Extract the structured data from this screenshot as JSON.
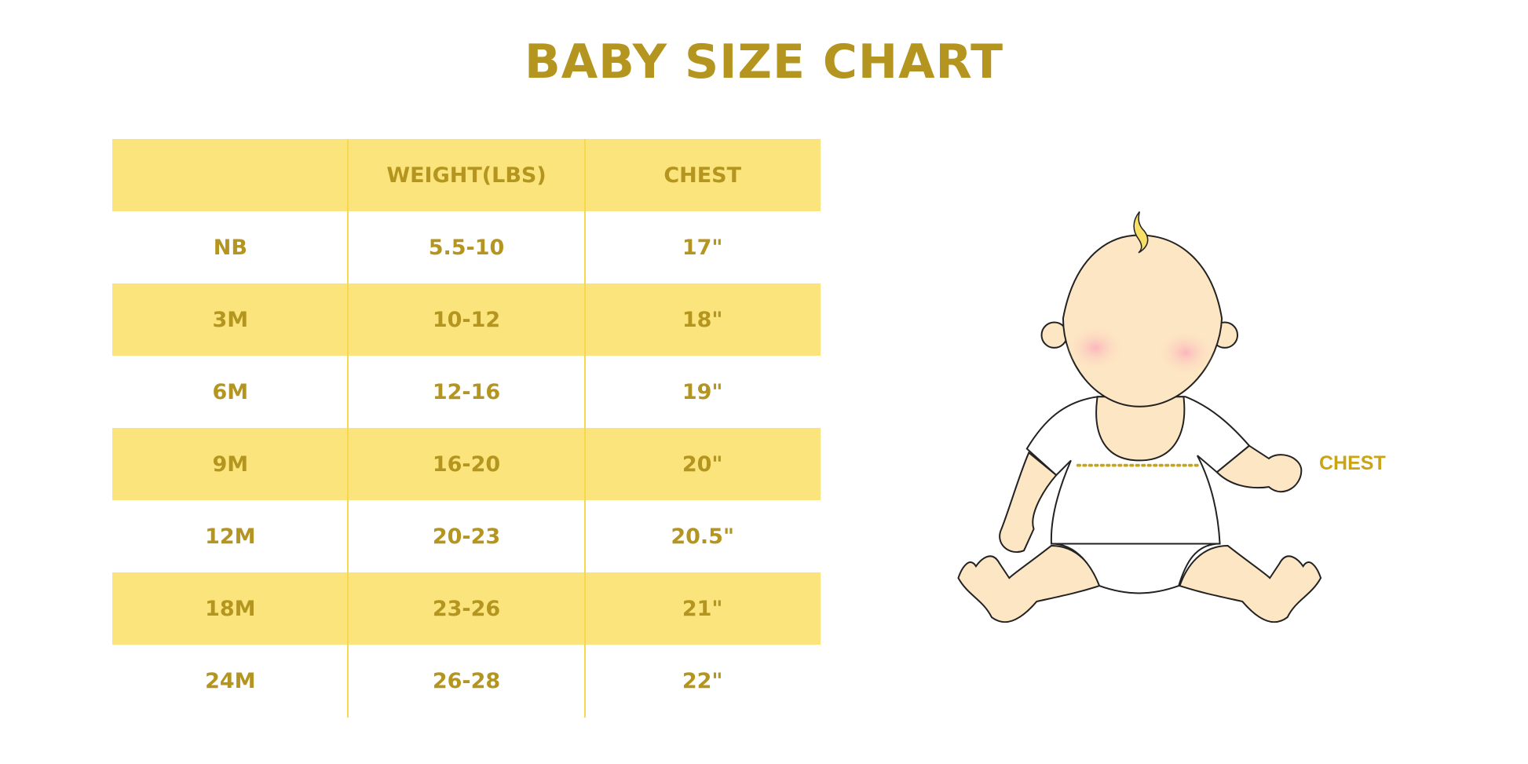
{
  "title": "BABY SIZE CHART",
  "table": {
    "headers": [
      "",
      "WEIGHT(LBS)",
      "CHEST"
    ],
    "rows": [
      [
        "NB",
        "5.5-10",
        "17\""
      ],
      [
        "3M",
        "10-12",
        "18\""
      ],
      [
        "6M",
        "12-16",
        "19\""
      ],
      [
        "9M",
        "16-20",
        "20\""
      ],
      [
        "12M",
        "20-23",
        "20.5\""
      ],
      [
        "18M",
        "23-26",
        "21\""
      ],
      [
        "24M",
        "26-28",
        "22\""
      ]
    ]
  },
  "illustration": {
    "chest_label": "CHEST"
  },
  "colors": {
    "accent_text": "#b4951f",
    "row_fill": "#fbe47c",
    "divider": "#f6d94e",
    "chest_line": "#c9a415"
  }
}
